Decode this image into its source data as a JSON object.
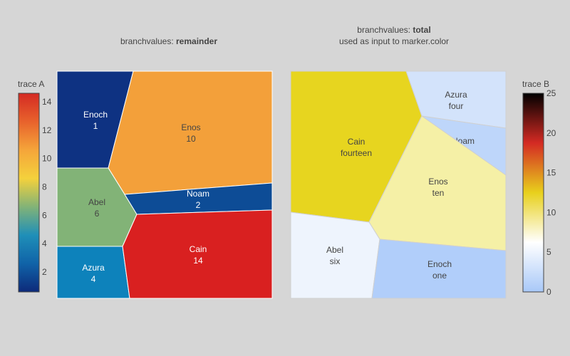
{
  "chart_data": [
    {
      "type": "voronoi-treemap",
      "title_prefix": "branchvalues: ",
      "title_bold": "remainder",
      "title_line2": "",
      "colorbar": {
        "title": "trace A",
        "ticks": [
          "2",
          "4",
          "6",
          "8",
          "10",
          "12",
          "14"
        ],
        "colorscale": [
          "#0d2a7a",
          "#1063a8",
          "#1f8fb8",
          "#82b377",
          "#f4d13c",
          "#f5a53a",
          "#e8622c",
          "#d42a23"
        ]
      },
      "cells": [
        {
          "name": "Enoch",
          "value": "1",
          "color": "#0e3282",
          "text_color": "#ffffff"
        },
        {
          "name": "Enos",
          "value": "10",
          "color": "#f3a03a",
          "text_color": "#444444"
        },
        {
          "name": "Abel",
          "value": "6",
          "color": "#82b377",
          "text_color": "#444444"
        },
        {
          "name": "Noam",
          "value": "2",
          "color": "#0d4c96",
          "text_color": "#ffffff"
        },
        {
          "name": "Azura",
          "value": "4",
          "color": "#0d82bb",
          "text_color": "#ffffff"
        },
        {
          "name": "Cain",
          "value": "14",
          "color": "#d92020",
          "text_color": "#ffffff"
        }
      ]
    },
    {
      "type": "voronoi-treemap",
      "title_prefix": "branchvalues: ",
      "title_bold": "total",
      "title_line2": "used as input to marker.color",
      "colorbar": {
        "title": "trace B",
        "ticks": [
          "0",
          "5",
          "10",
          "15",
          "20",
          "25"
        ],
        "colorscale": [
          "#a8c8f8",
          "#ffffff",
          "#e8d01c",
          "#d42a23",
          "#000000"
        ]
      },
      "cells": [
        {
          "name": "Cain",
          "value": "fourteen",
          "color": "#e7d51f",
          "text_color": "#444444"
        },
        {
          "name": "Azura",
          "value": "four",
          "color": "#d3e3fb",
          "text_color": "#444444"
        },
        {
          "name": "Noam",
          "value": "two",
          "color": "#bed6fa",
          "text_color": "#444444"
        },
        {
          "name": "Enos",
          "value": "ten",
          "color": "#f5f0a6",
          "text_color": "#444444"
        },
        {
          "name": "Abel",
          "value": "six",
          "color": "#eef4fd",
          "text_color": "#444444"
        },
        {
          "name": "Enoch",
          "value": "one",
          "color": "#b1cefa",
          "text_color": "#444444"
        }
      ]
    }
  ]
}
